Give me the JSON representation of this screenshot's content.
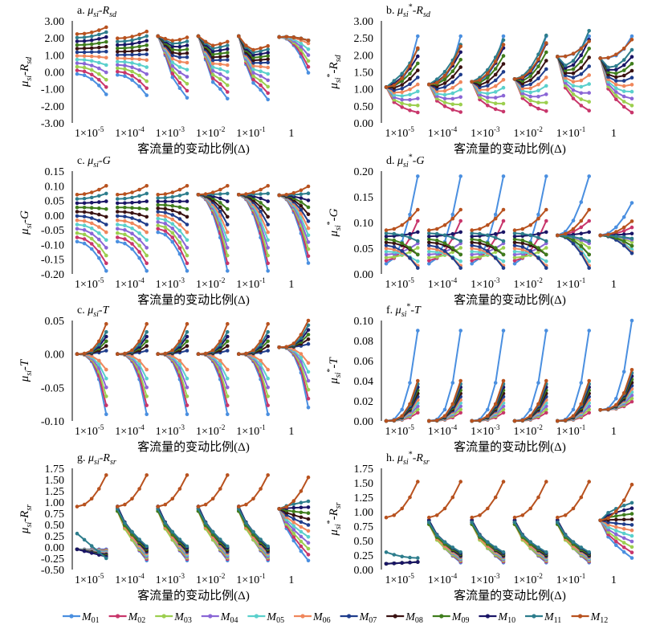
{
  "chart_data": {
    "type": "line",
    "x_groups": [
      "1×10⁻⁵",
      "1×10⁻⁴",
      "1×10⁻³",
      "1×10⁻²",
      "1×10⁻¹",
      "1"
    ],
    "xlabel": "客流量的变动比例(Δ)",
    "legend_position": "bottom",
    "series": [
      {
        "name": "M01",
        "color": "#4a8fe0"
      },
      {
        "name": "M02",
        "color": "#c8366b"
      },
      {
        "name": "M03",
        "color": "#9ccf4f"
      },
      {
        "name": "M04",
        "color": "#8a66d6"
      },
      {
        "name": "M05",
        "color": "#5ad0cc"
      },
      {
        "name": "M06",
        "color": "#f0875c"
      },
      {
        "name": "M07",
        "color": "#1f3d8c"
      },
      {
        "name": "M08",
        "color": "#3a1212"
      },
      {
        "name": "M09",
        "color": "#3f7d1c"
      },
      {
        "name": "M10",
        "color": "#1a1566"
      },
      {
        "name": "M11",
        "color": "#2d7d8c"
      },
      {
        "name": "M12",
        "color": "#b8521f"
      }
    ],
    "panels": [
      {
        "id": "a",
        "title": {
          "prefix": "a. ",
          "base": "μ",
          "sub": "si",
          "star": false,
          "suffix": "-R",
          "suffix_sub": "sd"
        },
        "ylabel": {
          "base": "μ",
          "sub": "si",
          "star": false,
          "suffix": "-R",
          "suffix_sub": "sd"
        },
        "ylim": [
          -3,
          3
        ],
        "yticks": [
          "3.00",
          "2.00",
          "1.00",
          "0.00",
          "-1.00",
          "-2.00",
          "-3.00"
        ],
        "ytick_values": [
          3,
          2,
          1,
          0,
          -1,
          -2,
          -3
        ]
      },
      {
        "id": "b",
        "title": {
          "prefix": "b. ",
          "base": "μ",
          "sub": "si",
          "star": true,
          "suffix": "-R",
          "suffix_sub": "sd"
        },
        "ylabel": {
          "base": "μ",
          "sub": "si",
          "star": true,
          "suffix": "-R",
          "suffix_sub": "sd"
        },
        "ylim": [
          0,
          3
        ],
        "yticks": [
          "3.00",
          "2.50",
          "2.00",
          "1.50",
          "1.00",
          "0.50",
          "0.00"
        ],
        "ytick_values": [
          3,
          2.5,
          2,
          1.5,
          1,
          0.5,
          0
        ]
      },
      {
        "id": "c",
        "title": {
          "prefix": "c. ",
          "base": "μ",
          "sub": "si",
          "star": false,
          "suffix": "-G",
          "suffix_sub": ""
        },
        "ylabel": {
          "base": "μ",
          "sub": "si",
          "star": false,
          "suffix": "-G",
          "suffix_sub": ""
        },
        "ylim": [
          -0.2,
          0.15
        ],
        "yticks": [
          "0.15",
          "0.10",
          "0.05",
          "0.00",
          "-0.05",
          "-0.10",
          "-0.15",
          "-0.20"
        ],
        "ytick_values": [
          0.15,
          0.1,
          0.05,
          0,
          -0.05,
          -0.1,
          -0.15,
          -0.2
        ]
      },
      {
        "id": "d",
        "title": {
          "prefix": "d. ",
          "base": "μ",
          "sub": "si",
          "star": true,
          "suffix": "-G",
          "suffix_sub": ""
        },
        "ylabel": {
          "base": "μ",
          "sub": "si",
          "star": true,
          "suffix": "-G",
          "suffix_sub": ""
        },
        "ylim": [
          0,
          0.2
        ],
        "yticks": [
          "0.20",
          "0.15",
          "0.10",
          "0.05",
          "0.00"
        ],
        "ytick_values": [
          0.2,
          0.15,
          0.1,
          0.05,
          0
        ]
      },
      {
        "id": "e",
        "title": {
          "prefix": "c. ",
          "base": "μ",
          "sub": "si",
          "star": false,
          "suffix": "-T",
          "suffix_sub": ""
        },
        "ylabel": {
          "base": "μ",
          "sub": "si",
          "star": false,
          "suffix": "T",
          "suffix_sub": "",
          "plain_sep": true
        },
        "ylim": [
          -0.1,
          0.05
        ],
        "yticks": [
          "0.05",
          "0.00",
          "-0.05",
          "-0.10"
        ],
        "ytick_values": [
          0.05,
          0,
          -0.05,
          -0.1
        ]
      },
      {
        "id": "f",
        "title": {
          "prefix": "f. ",
          "base": "μ",
          "sub": "si",
          "star": true,
          "suffix": "-T",
          "suffix_sub": ""
        },
        "ylabel": {
          "base": "μ",
          "sub": "si",
          "star": true,
          "suffix": "-T",
          "suffix_sub": ""
        },
        "ylim": [
          0,
          0.1
        ],
        "yticks": [
          "0.10",
          "0.08",
          "0.06",
          "0.04",
          "0.02",
          "0.00"
        ],
        "ytick_values": [
          0.1,
          0.08,
          0.06,
          0.04,
          0.02,
          0
        ]
      },
      {
        "id": "g",
        "title": {
          "prefix": "g. ",
          "base": "μ",
          "sub": "si",
          "star": false,
          "suffix": "-R",
          "suffix_sub": "sr"
        },
        "ylabel": {
          "base": "μ",
          "sub": "si",
          "star": false,
          "suffix": "-R",
          "suffix_sub": "sr"
        },
        "ylim": [
          -0.5,
          1.75
        ],
        "yticks": [
          "1.75",
          "1.50",
          "1.25",
          "1.00",
          "0.75",
          "0.50",
          "0.25",
          "0.00",
          "-0.25",
          "-0.50"
        ],
        "ytick_values": [
          1.75,
          1.5,
          1.25,
          1,
          0.75,
          0.5,
          0.25,
          0,
          -0.25,
          -0.5
        ]
      },
      {
        "id": "h",
        "title": {
          "prefix": "h. ",
          "base": "μ",
          "sub": "si",
          "star": true,
          "suffix": "-R",
          "suffix_sub": "sr"
        },
        "ylabel": {
          "base": "μ",
          "sub": "si",
          "star": true,
          "suffix": "-R",
          "suffix_sub": "sr"
        },
        "ylim": [
          0,
          1.75
        ],
        "yticks": [
          "1.75",
          "1.50",
          "1.25",
          "1.00",
          "0.75",
          "0.50",
          "0.25",
          "0.00"
        ],
        "ytick_values": [
          1.75,
          1.5,
          1.25,
          1,
          0.75,
          0.5,
          0.25,
          0
        ]
      }
    ]
  }
}
